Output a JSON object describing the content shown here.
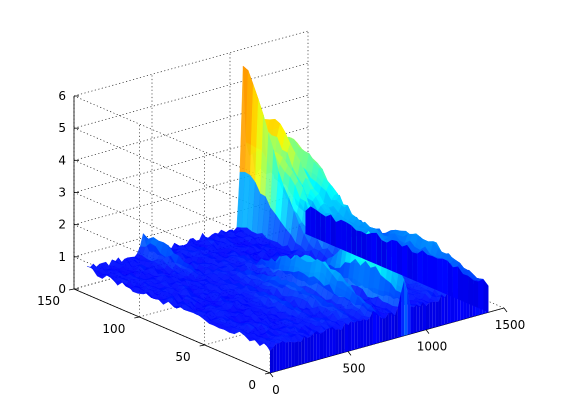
{
  "chart_data": {
    "type": "surface",
    "title": "",
    "xlabel": "",
    "ylabel": "",
    "zlabel": "",
    "grid": true,
    "colormap": "jet",
    "colormap_colors": [
      "#00008f",
      "#0000ff",
      "#00ffff",
      "#ffff00",
      "#ff0000",
      "#800000"
    ],
    "xlim": [
      0,
      1500
    ],
    "ylim": [
      0,
      150
    ],
    "zlim": [
      0,
      6
    ],
    "x_ticks": [
      0,
      500,
      1000,
      1500
    ],
    "y_ticks": [
      0,
      50,
      100,
      150
    ],
    "z_ticks": [
      0,
      1,
      2,
      3,
      4,
      5,
      6
    ],
    "x_tick_labels": [
      "0",
      "500",
      "1000",
      "1500"
    ],
    "y_tick_labels": [
      "0",
      "50",
      "100",
      "150"
    ],
    "z_tick_labels": [
      "0",
      "1",
      "2",
      "3",
      "4",
      "5",
      "6"
    ],
    "data_extent": {
      "x": [
        0,
        1400
      ],
      "y": [
        0,
        140
      ]
    },
    "peaks": [
      {
        "x": 1000,
        "y": 140,
        "z": 5.5,
        "width_x": 20,
        "width_y": 30
      },
      {
        "x": 1050,
        "y": 125,
        "z": 3.3,
        "width_x": 30,
        "width_y": 35
      },
      {
        "x": 1140,
        "y": 135,
        "z": 3.8,
        "width_x": 50,
        "width_y": 30
      },
      {
        "x": 1270,
        "y": 135,
        "z": 3.0,
        "width_x": 45,
        "width_y": 35
      },
      {
        "x": 860,
        "y": 25,
        "z": 2.7,
        "width_x": 25,
        "width_y": 30
      },
      {
        "x": 670,
        "y": 45,
        "z": 1.9,
        "width_x": 35,
        "width_y": 35
      },
      {
        "x": 540,
        "y": 45,
        "z": 1.2,
        "width_x": 40,
        "width_y": 40
      },
      {
        "x": 360,
        "y": 130,
        "z": 1.4,
        "width_x": 30,
        "width_y": 25
      },
      {
        "x": 400,
        "y": 40,
        "z": 1.0,
        "width_x": 40,
        "width_y": 30
      },
      {
        "x": 1350,
        "y": 40,
        "z": 1.5,
        "width_x": 40,
        "width_y": 40
      },
      {
        "x": 1200,
        "y": 80,
        "z": 1.6,
        "width_x": 120,
        "width_y": 60
      }
    ],
    "baseline_z": 0.8
  }
}
